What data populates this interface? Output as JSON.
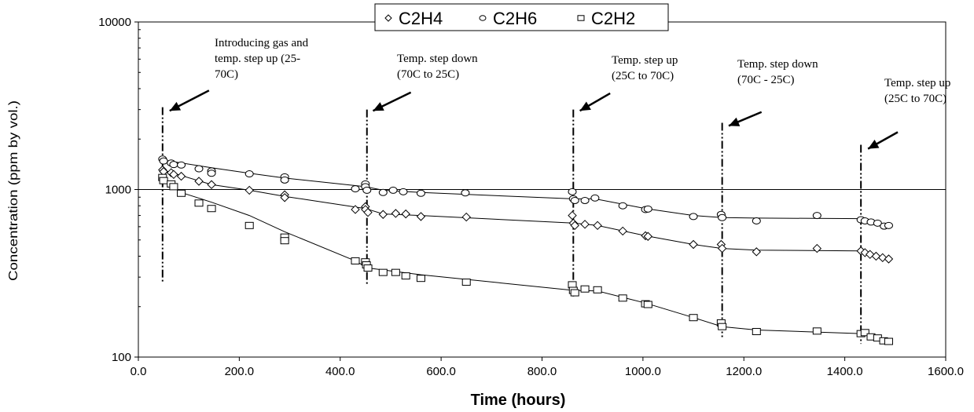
{
  "chart_data": {
    "type": "scatter",
    "xlabel": "Time (hours)",
    "ylabel": "Concentration (ppm by vol.)",
    "xlim": [
      0,
      1600
    ],
    "ylim": [
      100,
      10000
    ],
    "yscale": "log",
    "x_ticks": [
      "0.0",
      "200.0",
      "400.0",
      "600.0",
      "800.0",
      "1000.0",
      "1200.0",
      "1400.0",
      "1600.0"
    ],
    "y_ticks": [
      "100",
      "1000",
      "10000"
    ],
    "gridlines": [
      1000
    ],
    "legend_position": "top-center",
    "series": [
      {
        "name": "C2H4",
        "marker": "diamond",
        "points": [
          [
            48,
            1310
          ],
          [
            50,
            1280
          ],
          [
            65,
            1260
          ],
          [
            70,
            1230
          ],
          [
            85,
            1200
          ],
          [
            120,
            1120
          ],
          [
            145,
            1070
          ],
          [
            220,
            990
          ],
          [
            290,
            930
          ],
          [
            290,
            895
          ],
          [
            430,
            760
          ],
          [
            450,
            790
          ],
          [
            450,
            760
          ],
          [
            455,
            730
          ],
          [
            485,
            710
          ],
          [
            510,
            720
          ],
          [
            530,
            715
          ],
          [
            560,
            690
          ],
          [
            650,
            685
          ],
          [
            860,
            700
          ],
          [
            862,
            630
          ],
          [
            865,
            610
          ],
          [
            885,
            620
          ],
          [
            910,
            610
          ],
          [
            960,
            565
          ],
          [
            1005,
            530
          ],
          [
            1010,
            525
          ],
          [
            1100,
            470
          ],
          [
            1155,
            470
          ],
          [
            1157,
            445
          ],
          [
            1225,
            425
          ],
          [
            1345,
            445
          ],
          [
            1432,
            430
          ],
          [
            1440,
            420
          ],
          [
            1450,
            410
          ],
          [
            1462,
            400
          ],
          [
            1475,
            392
          ],
          [
            1487,
            385
          ]
        ],
        "fit": [
          [
            48,
            1310
          ],
          [
            145,
            1070
          ],
          [
            220,
            990
          ],
          [
            290,
            910
          ],
          [
            450,
            770
          ],
          [
            485,
            715
          ],
          [
            560,
            700
          ],
          [
            862,
            630
          ],
          [
            910,
            610
          ],
          [
            1005,
            530
          ],
          [
            1100,
            470
          ],
          [
            1157,
            445
          ],
          [
            1225,
            435
          ],
          [
            1432,
            430
          ],
          [
            1487,
            385
          ]
        ]
      },
      {
        "name": "C2H6",
        "marker": "circle",
        "points": [
          [
            48,
            1520
          ],
          [
            50,
            1480
          ],
          [
            65,
            1440
          ],
          [
            70,
            1410
          ],
          [
            85,
            1400
          ],
          [
            120,
            1330
          ],
          [
            145,
            1290
          ],
          [
            145,
            1250
          ],
          [
            220,
            1240
          ],
          [
            290,
            1190
          ],
          [
            290,
            1140
          ],
          [
            430,
            1010
          ],
          [
            450,
            1080
          ],
          [
            450,
            1040
          ],
          [
            453,
            990
          ],
          [
            485,
            960
          ],
          [
            505,
            990
          ],
          [
            525,
            970
          ],
          [
            560,
            950
          ],
          [
            648,
            955
          ],
          [
            860,
            970
          ],
          [
            862,
            880
          ],
          [
            865,
            860
          ],
          [
            885,
            860
          ],
          [
            905,
            890
          ],
          [
            960,
            800
          ],
          [
            1005,
            760
          ],
          [
            1010,
            765
          ],
          [
            1100,
            690
          ],
          [
            1155,
            710
          ],
          [
            1157,
            680
          ],
          [
            1225,
            650
          ],
          [
            1345,
            700
          ],
          [
            1432,
            660
          ],
          [
            1440,
            650
          ],
          [
            1452,
            640
          ],
          [
            1465,
            630
          ],
          [
            1478,
            605
          ],
          [
            1487,
            610
          ]
        ],
        "fit": [
          [
            48,
            1500
          ],
          [
            145,
            1350
          ],
          [
            220,
            1250
          ],
          [
            290,
            1170
          ],
          [
            450,
            1040
          ],
          [
            485,
            990
          ],
          [
            560,
            960
          ],
          [
            862,
            880
          ],
          [
            905,
            880
          ],
          [
            1005,
            770
          ],
          [
            1100,
            700
          ],
          [
            1157,
            680
          ],
          [
            1225,
            675
          ],
          [
            1432,
            670
          ],
          [
            1487,
            610
          ]
        ]
      },
      {
        "name": "C2H2",
        "marker": "square",
        "points": [
          [
            48,
            1180
          ],
          [
            50,
            1130
          ],
          [
            65,
            1080
          ],
          [
            70,
            1040
          ],
          [
            85,
            950
          ],
          [
            120,
            830
          ],
          [
            145,
            770
          ],
          [
            220,
            610
          ],
          [
            290,
            520
          ],
          [
            290,
            495
          ],
          [
            430,
            375
          ],
          [
            450,
            370
          ],
          [
            452,
            355
          ],
          [
            455,
            340
          ],
          [
            485,
            320
          ],
          [
            510,
            320
          ],
          [
            530,
            305
          ],
          [
            560,
            295
          ],
          [
            650,
            280
          ],
          [
            860,
            270
          ],
          [
            862,
            250
          ],
          [
            865,
            242
          ],
          [
            885,
            255
          ],
          [
            910,
            252
          ],
          [
            960,
            225
          ],
          [
            1005,
            208
          ],
          [
            1010,
            206
          ],
          [
            1100,
            172
          ],
          [
            1155,
            160
          ],
          [
            1157,
            152
          ],
          [
            1225,
            142
          ],
          [
            1345,
            143
          ],
          [
            1432,
            138
          ],
          [
            1440,
            140
          ],
          [
            1452,
            132
          ],
          [
            1465,
            130
          ],
          [
            1477,
            125
          ],
          [
            1487,
            124
          ]
        ],
        "fit": [
          [
            48,
            1150
          ],
          [
            85,
            960
          ],
          [
            145,
            840
          ],
          [
            220,
            700
          ],
          [
            290,
            560
          ],
          [
            430,
            375
          ],
          [
            455,
            340
          ],
          [
            560,
            310
          ],
          [
            862,
            250
          ],
          [
            910,
            248
          ],
          [
            1005,
            210
          ],
          [
            1100,
            172
          ],
          [
            1157,
            152
          ],
          [
            1225,
            145
          ],
          [
            1432,
            138
          ],
          [
            1487,
            124
          ]
        ]
      }
    ],
    "events": [
      {
        "x": 48,
        "y_top": 3100,
        "y_bottom": 280
      },
      {
        "x": 453,
        "y_top": 3000,
        "y_bottom": 270
      },
      {
        "x": 862,
        "y_top": 3000,
        "y_bottom": 230
      },
      {
        "x": 1157,
        "y_top": 2500,
        "y_bottom": 130
      },
      {
        "x": 1432,
        "y_top": 1850,
        "y_bottom": 120
      }
    ],
    "annotations": [
      {
        "lines": [
          "Introducing gas and",
          "temp. step up (25-",
          "70C)"
        ],
        "arrow_from": [
          140,
          3900
        ],
        "arrow_to": [
          62,
          2950
        ]
      },
      {
        "lines": [
          "Temp. step down",
          "(70C to 25C)"
        ],
        "arrow_from": [
          540,
          3800
        ],
        "arrow_to": [
          465,
          2950
        ]
      },
      {
        "lines": [
          "Temp. step up",
          "(25C to 70C)"
        ],
        "arrow_from": [
          935,
          3750
        ],
        "arrow_to": [
          875,
          2950
        ]
      },
      {
        "lines": [
          "Temp. step down",
          "(70C - 25C)"
        ],
        "arrow_from": [
          1235,
          2900
        ],
        "arrow_to": [
          1170,
          2400
        ]
      },
      {
        "lines": [
          "Temp. step up",
          "(25C to 70C)"
        ],
        "arrow_from": [
          1505,
          2200
        ],
        "arrow_to": [
          1446,
          1750
        ]
      }
    ]
  }
}
